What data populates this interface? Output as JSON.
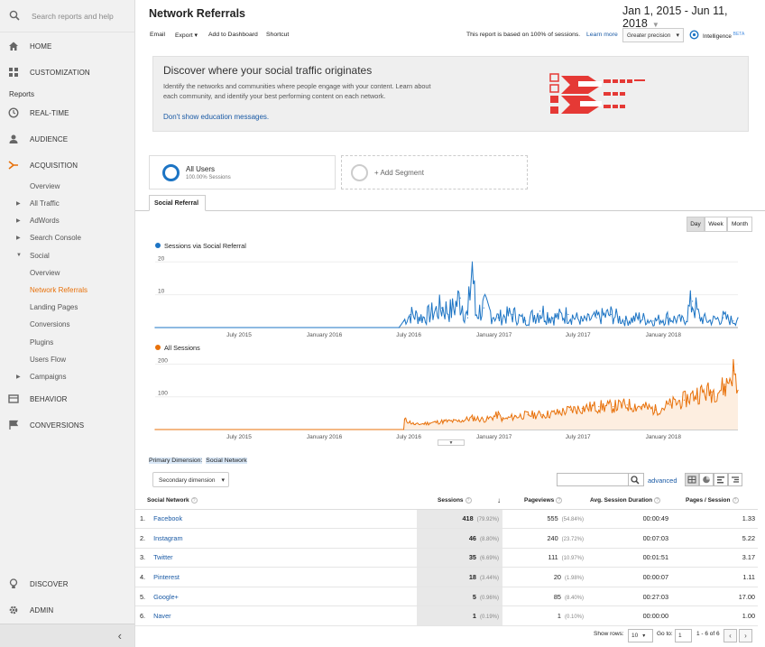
{
  "sidebar": {
    "search_placeholder": "Search reports and help",
    "home": "HOME",
    "customization": "CUSTOMIZATION",
    "reports_label": "Reports",
    "realtime": "REAL-TIME",
    "audience": "AUDIENCE",
    "acquisition": "ACQUISITION",
    "acq_items": [
      "Overview",
      "All Traffic",
      "AdWords",
      "Search Console",
      "Social"
    ],
    "social_items": [
      "Overview",
      "Network Referrals",
      "Landing Pages",
      "Conversions",
      "Plugins",
      "Users Flow"
    ],
    "campaigns": "Campaigns",
    "behavior": "BEHAVIOR",
    "conversions": "CONVERSIONS",
    "discover": "DISCOVER",
    "admin": "ADMIN",
    "collapse": "‹"
  },
  "header": {
    "title": "Network Referrals",
    "date_range": "Jan 1, 2015 - Jun 11, 2018",
    "toolbar": {
      "email": "Email",
      "export": "Export ▾",
      "add_dashboard": "Add to Dashboard",
      "shortcut": "Shortcut"
    },
    "sessions_note": "This report is based on 100% of sessions.",
    "learn_more": "Learn more",
    "precision": "Greater precision",
    "intelligence": "Intelligence",
    "intelligence_badge": "BETA"
  },
  "banner": {
    "title": "Discover where your social traffic originates",
    "body": "Identify the networks and communities where people engage with your content. Learn about each community, and identify your best performing content on each network.",
    "dismiss": "Don't show education messages."
  },
  "segments": {
    "all_users": "All Users",
    "all_users_sub": "100.00% Sessions",
    "add_segment": "+ Add Segment"
  },
  "tab": "Social Referral",
  "granularity": {
    "day": "Day",
    "week": "Week",
    "month": "Month",
    "selected": "Day"
  },
  "chart_data": [
    {
      "type": "line",
      "title": "",
      "series": [
        {
          "name": "Sessions via Social Referral",
          "color": "#1c74c4"
        }
      ],
      "x_ticks": [
        "July 2015",
        "January 2016",
        "July 2016",
        "January 2017",
        "July 2017",
        "January 2018"
      ],
      "y_ticks": [
        10,
        20
      ],
      "ylim": [
        0,
        22
      ],
      "x_range": [
        "2015-01-01",
        "2018-06-11"
      ],
      "points": [
        [
          "2015-01-01",
          0
        ],
        [
          "2016-06-10",
          0
        ],
        [
          "2016-06-20",
          2
        ],
        [
          "2016-07-05",
          4
        ],
        [
          "2016-08-01",
          3
        ],
        [
          "2016-09-10",
          6
        ],
        [
          "2016-10-01",
          5
        ],
        [
          "2016-10-20",
          9
        ],
        [
          "2016-11-05",
          3
        ],
        [
          "2016-11-15",
          20
        ],
        [
          "2016-11-22",
          4
        ],
        [
          "2016-12-10",
          6
        ],
        [
          "2017-01-10",
          3
        ],
        [
          "2017-02-10",
          4
        ],
        [
          "2017-03-10",
          2
        ],
        [
          "2017-04-10",
          5
        ],
        [
          "2017-05-10",
          3
        ],
        [
          "2017-06-10",
          4
        ],
        [
          "2017-07-10",
          2
        ],
        [
          "2017-08-10",
          3
        ],
        [
          "2017-09-10",
          4
        ],
        [
          "2017-10-10",
          2
        ],
        [
          "2017-11-10",
          3
        ],
        [
          "2017-12-10",
          2
        ],
        [
          "2018-01-10",
          3
        ],
        [
          "2018-02-15",
          2
        ],
        [
          "2018-03-05",
          8
        ],
        [
          "2018-03-20",
          3
        ],
        [
          "2018-04-10",
          2
        ],
        [
          "2018-05-10",
          3
        ],
        [
          "2018-06-01",
          2
        ],
        [
          "2018-06-11",
          3
        ]
      ]
    },
    {
      "type": "area",
      "title": "",
      "series": [
        {
          "name": "All Sessions",
          "color": "#e8710a"
        }
      ],
      "x_ticks": [
        "July 2015",
        "January 2016",
        "July 2016",
        "January 2017",
        "July 2017",
        "January 2018"
      ],
      "y_ticks": [
        100,
        200
      ],
      "ylim": [
        0,
        215
      ],
      "x_range": [
        "2015-01-01",
        "2018-06-11"
      ],
      "points": [
        [
          "2015-01-01",
          0
        ],
        [
          "2016-06-20",
          0
        ],
        [
          "2016-06-22",
          30
        ],
        [
          "2016-07-15",
          15
        ],
        [
          "2016-08-15",
          20
        ],
        [
          "2016-09-15",
          25
        ],
        [
          "2016-10-15",
          25
        ],
        [
          "2016-11-15",
          35
        ],
        [
          "2016-12-15",
          30
        ],
        [
          "2017-01-10",
          45
        ],
        [
          "2017-01-20",
          30
        ],
        [
          "2017-02-15",
          40
        ],
        [
          "2017-03-15",
          45
        ],
        [
          "2017-04-15",
          45
        ],
        [
          "2017-05-15",
          50
        ],
        [
          "2017-06-15",
          60
        ],
        [
          "2017-07-10",
          65
        ],
        [
          "2017-08-15",
          70
        ],
        [
          "2017-09-15",
          70
        ],
        [
          "2017-10-15",
          75
        ],
        [
          "2017-11-15",
          70
        ],
        [
          "2017-12-15",
          60
        ],
        [
          "2018-01-15",
          75
        ],
        [
          "2018-02-15",
          90
        ],
        [
          "2018-03-15",
          110
        ],
        [
          "2018-04-15",
          115
        ],
        [
          "2018-05-15",
          130
        ],
        [
          "2018-06-01",
          180
        ],
        [
          "2018-06-11",
          120
        ]
      ]
    }
  ],
  "dimension": {
    "primary_label": "Primary Dimension:",
    "primary_value": "Social Network",
    "secondary": "Secondary dimension"
  },
  "table_tools": {
    "advanced": "advanced"
  },
  "table": {
    "columns": [
      "Social Network",
      "Sessions",
      "Pageviews",
      "Avg. Session Duration",
      "Pages / Session"
    ],
    "rows": [
      {
        "idx": "1.",
        "network": "Facebook",
        "sessions": "418",
        "sessions_pct": "(79.92%)",
        "pageviews": "555",
        "pageviews_pct": "(54.84%)",
        "duration": "00:00:49",
        "pps": "1.33"
      },
      {
        "idx": "2.",
        "network": "Instagram",
        "sessions": "46",
        "sessions_pct": "(8.80%)",
        "pageviews": "240",
        "pageviews_pct": "(23.72%)",
        "duration": "00:07:03",
        "pps": "5.22"
      },
      {
        "idx": "3.",
        "network": "Twitter",
        "sessions": "35",
        "sessions_pct": "(6.69%)",
        "pageviews": "111",
        "pageviews_pct": "(10.97%)",
        "duration": "00:01:51",
        "pps": "3.17"
      },
      {
        "idx": "4.",
        "network": "Pinterest",
        "sessions": "18",
        "sessions_pct": "(3.44%)",
        "pageviews": "20",
        "pageviews_pct": "(1.98%)",
        "duration": "00:00:07",
        "pps": "1.11"
      },
      {
        "idx": "5.",
        "network": "Google+",
        "sessions": "5",
        "sessions_pct": "(0.96%)",
        "pageviews": "85",
        "pageviews_pct": "(8.40%)",
        "duration": "00:27:03",
        "pps": "17.00"
      },
      {
        "idx": "6.",
        "network": "Naver",
        "sessions": "1",
        "sessions_pct": "(0.19%)",
        "pageviews": "1",
        "pageviews_pct": "(0.10%)",
        "duration": "00:00:00",
        "pps": "1.00"
      }
    ]
  },
  "footer": {
    "show_rows_label": "Show rows:",
    "show_rows": "10",
    "goto_label": "Go to:",
    "goto": "1",
    "range": "1 - 6 of 6",
    "prev": "‹",
    "next": "›"
  }
}
